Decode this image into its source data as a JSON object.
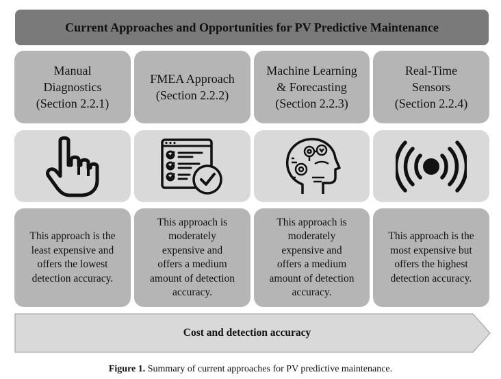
{
  "title": "Current Approaches and Opportunities for PV Predictive Maintenance",
  "columns": [
    {
      "header": "Manual\nDiagnostics\n(Section 2.2.1)",
      "icon": "pointing-hand-icon",
      "description": "This approach is the\nleast expensive and\noffers the lowest\ndetection accuracy."
    },
    {
      "header": "FMEA Approach\n(Section 2.2.2)",
      "icon": "checklist-icon",
      "description": "This approach is\nmoderately\nexpensive and\noffers a medium\namount of detection\naccuracy."
    },
    {
      "header": "Machine Learning\n& Forecasting\n(Section 2.2.3)",
      "icon": "ai-head-icon",
      "description": "This approach is\nmoderately\nexpensive and\noffers a medium\namount of detection\naccuracy."
    },
    {
      "header": "Real-Time\nSensors\n(Section 2.2.4)",
      "icon": "broadcast-sensor-icon",
      "description": "This approach is the\nmost expensive but\noffers the highest\ndetection accuracy."
    }
  ],
  "arrow_label": "Cost and detection accuracy",
  "caption": {
    "label": "Figure 1.",
    "text": " Summary of current approaches for PV predictive maintenance."
  },
  "colors": {
    "title_bg": "#7a7a7a",
    "header_bg": "#b5b5b5",
    "icon_bg": "#d9d9d9",
    "arrow_fill": "#d9d9d9"
  }
}
